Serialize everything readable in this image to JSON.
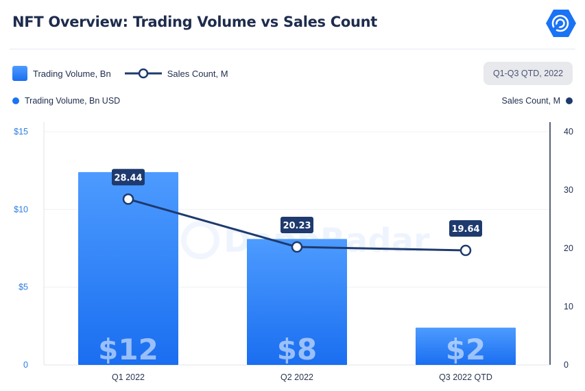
{
  "title": "NFT Overview: Trading Volume vs Sales Count",
  "logo_icon": "dappradar-logo-icon",
  "legend": {
    "bar_label": "Trading Volume, Bn",
    "line_label": "Sales Count, M"
  },
  "period_badge": "Q1-Q3 QTD, 2022",
  "axis_titles": {
    "left": "Trading Volume, Bn USD",
    "right": "Sales Count, M"
  },
  "watermark": "DappRadar",
  "colors": {
    "bar_top": "#4d9bff",
    "bar_bottom": "#1a6ef0",
    "line": "#1e3a6e",
    "left_axis_text": "#2a7de1"
  },
  "chart_data": {
    "type": "bar",
    "categories": [
      "Q1 2022",
      "Q2 2022",
      "Q3 2022 QTD"
    ],
    "series": [
      {
        "name": "Trading Volume, Bn",
        "type": "bar",
        "axis": "left",
        "values": [
          12.4,
          8.1,
          2.4
        ],
        "labels": [
          "$12",
          "$8",
          "$2"
        ]
      },
      {
        "name": "Sales Count, M",
        "type": "line",
        "axis": "right",
        "values": [
          28.44,
          20.23,
          19.64
        ],
        "labels": [
          "28.44",
          "20.23",
          "19.64"
        ]
      }
    ],
    "y_left": {
      "ylim": [
        0,
        15
      ],
      "ticks": [
        0,
        5,
        10,
        15
      ],
      "tick_labels": [
        "0",
        "$5",
        "$10",
        "$15"
      ]
    },
    "y_right": {
      "ylim": [
        0,
        40
      ],
      "ticks": [
        0,
        10,
        20,
        30,
        40
      ],
      "tick_labels": [
        "0",
        "10",
        "20",
        "30",
        "40"
      ]
    },
    "grid": true,
    "legend_position": "top-left"
  }
}
